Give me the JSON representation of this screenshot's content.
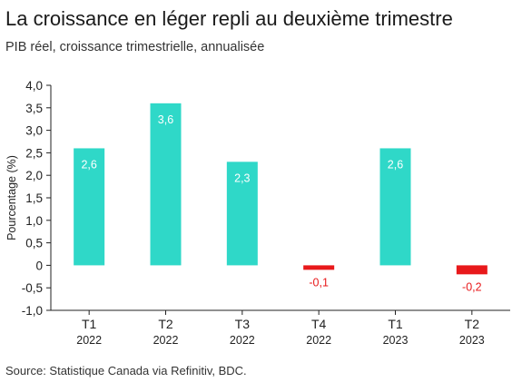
{
  "chart_data": {
    "type": "bar",
    "title": "La croissance en léger repli au deuxième trimestre",
    "subtitle": "PIB réel, croissance trimestrielle, annualisée",
    "ylabel": "Pourcentage (%)",
    "xlabel": "",
    "ylim": [
      -1.0,
      4.0
    ],
    "yticks": [
      "4,0",
      "3,5",
      "3,0",
      "2,5",
      "2,0",
      "1,5",
      "1,0",
      "0,5",
      "0",
      "-0,5",
      "-1,0"
    ],
    "ytick_values": [
      4.0,
      3.5,
      3.0,
      2.5,
      2.0,
      1.5,
      1.0,
      0.5,
      0,
      -0.5,
      -1.0
    ],
    "categories": [
      {
        "quarter": "T1",
        "year": "2022"
      },
      {
        "quarter": "T2",
        "year": "2022"
      },
      {
        "quarter": "T3",
        "year": "2022"
      },
      {
        "quarter": "T4",
        "year": "2022"
      },
      {
        "quarter": "T1",
        "year": "2023"
      },
      {
        "quarter": "T2",
        "year": "2023"
      }
    ],
    "values": [
      2.6,
      3.6,
      2.3,
      -0.1,
      2.6,
      -0.2
    ],
    "value_labels": [
      "2,6",
      "3,6",
      "2,3",
      "-0,1",
      "2,6",
      "-0,2"
    ],
    "colors": {
      "positive": "#2fd8c8",
      "negative": "#e8191b",
      "negative_label": "#e8191b",
      "positive_label": "#ffffff"
    },
    "grid": false,
    "source": "Source: Statistique Canada via Refinitiv, BDC."
  }
}
